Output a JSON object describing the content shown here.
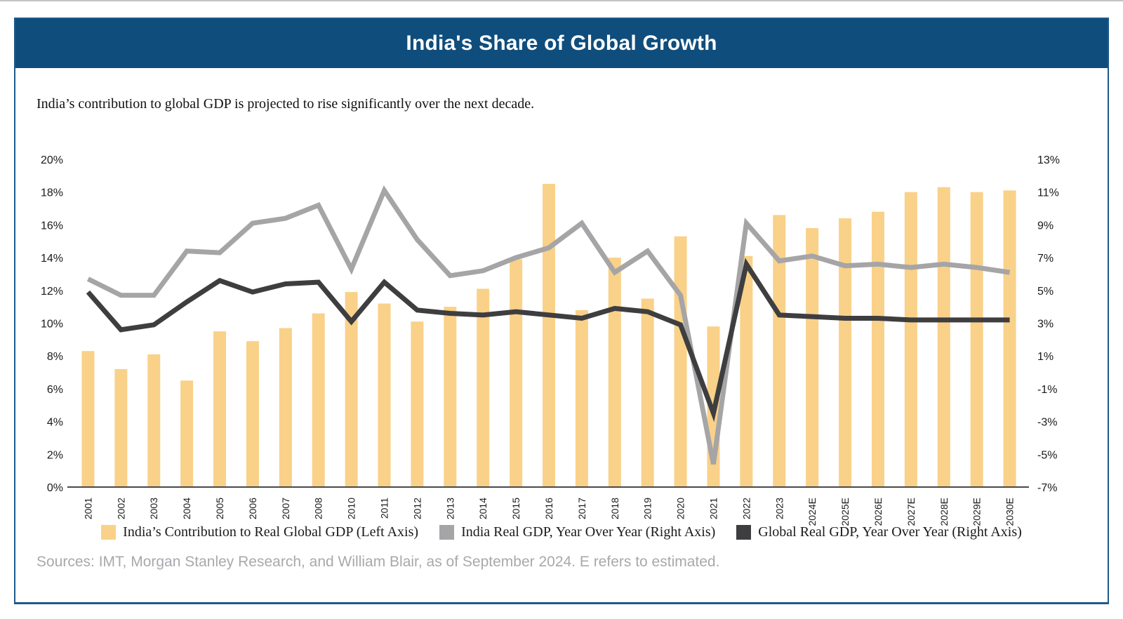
{
  "header": {
    "title": "India's Share of Global Growth"
  },
  "subtitle": "India’s contribution to global GDP is projected to rise significantly over the next decade.",
  "source_note": "Sources: IMT, Morgan Stanley Research, and William Blair, as of September 2024. E refers to estimated.",
  "colors": {
    "header_bg": "#0f4d7c",
    "card_border": "#1d5a8a",
    "bar": "#f9d189",
    "india_line": "#a5a5a7",
    "global_line": "#3e3e40",
    "axis_line": "#4a4a4c",
    "tick_text": "#1a1a1a",
    "source_text": "#a7a9ac"
  },
  "chart_data": {
    "type": "bar",
    "subtype": "combo-bar-line-dual-axis",
    "grid": "off",
    "legend_position": "bottom",
    "categories": [
      "2001",
      "2002",
      "2003",
      "2004",
      "2005",
      "2006",
      "2007",
      "2008",
      "2010",
      "2011",
      "2012",
      "2013",
      "2014",
      "2015",
      "2016",
      "2017",
      "2018",
      "2019",
      "2020",
      "2021",
      "2022",
      "2023",
      "2024E",
      "2025E",
      "2026E",
      "2027E",
      "2028E",
      "2029E",
      "2030E"
    ],
    "left_axis": {
      "min": 0,
      "max": 20,
      "tick_labels": [
        "20%",
        "18%",
        "16%",
        "14%",
        "12%",
        "10%",
        "8%",
        "6%",
        "4%",
        "2%",
        "0%"
      ]
    },
    "right_axis": {
      "min": -7,
      "max": 13,
      "tick_labels": [
        "13%",
        "11%",
        "9%",
        "7%",
        "5%",
        "3%",
        "1%",
        "-1%",
        "-3%",
        "-5%",
        "-7%"
      ]
    },
    "series": [
      {
        "name": "India’s Contribution to Real Global GDP (Left Axis)",
        "type": "bar",
        "axis": "left",
        "color": "#f9d189",
        "values": [
          8.3,
          7.2,
          8.1,
          6.5,
          9.5,
          8.9,
          9.7,
          10.6,
          11.9,
          11.2,
          10.1,
          11.0,
          12.1,
          13.9,
          18.5,
          10.8,
          14.0,
          11.5,
          15.3,
          9.8,
          14.1,
          16.6,
          15.8,
          16.4,
          16.8,
          18.0,
          18.3,
          18.0,
          18.1
        ]
      },
      {
        "name": "India Real GDP, Year Over Year (Right Axis)",
        "type": "line",
        "axis": "right",
        "color": "#a5a5a7",
        "values": [
          5.7,
          4.7,
          4.7,
          7.4,
          7.3,
          9.1,
          9.4,
          10.2,
          6.3,
          11.1,
          8.1,
          5.9,
          6.2,
          7.0,
          7.6,
          9.1,
          6.1,
          7.4,
          4.7,
          -5.6,
          9.1,
          6.8,
          7.1,
          6.5,
          6.6,
          6.4,
          6.6,
          6.4,
          6.1
        ]
      },
      {
        "name": "Global Real GDP, Year Over Year (Right Axis)",
        "type": "line",
        "axis": "right",
        "color": "#3e3e40",
        "values": [
          4.9,
          2.6,
          2.9,
          4.3,
          5.6,
          4.9,
          5.4,
          5.5,
          3.1,
          5.5,
          3.8,
          3.6,
          3.5,
          3.7,
          3.5,
          3.3,
          3.9,
          3.7,
          2.9,
          -2.5,
          6.6,
          3.5,
          3.4,
          3.3,
          3.3,
          3.2,
          3.2,
          3.2,
          3.2
        ]
      }
    ]
  }
}
